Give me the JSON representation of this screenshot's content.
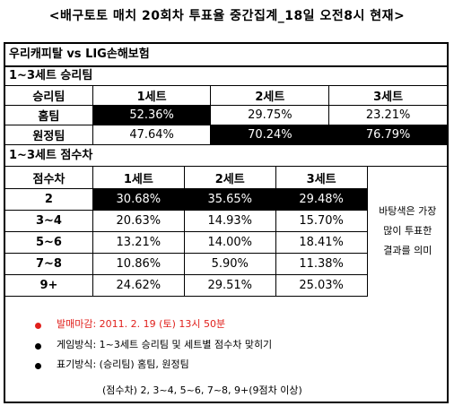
{
  "title": "<배구토토 매치 20회차 투표율 중간집계_18일 오전8시 현재>",
  "match": "우리캐피탈 vs LIG손해보험",
  "section1": {
    "label": "1~3세트 승리팀",
    "headers": [
      "승리팀",
      "1세트",
      "2세트",
      "3세트"
    ],
    "rows": [
      {
        "label": "홈팀",
        "values": [
          "52.36%",
          "29.75%",
          "23.21%"
        ]
      },
      {
        "label": "원정팀",
        "values": [
          "47.64%",
          "70.24%",
          "76.79%"
        ]
      }
    ]
  },
  "section2": {
    "label": "1~3세트 점수차",
    "headers": [
      "점수차",
      "1세트",
      "2세트",
      "3세트"
    ],
    "rows": [
      {
        "label": "2",
        "values": [
          "30.68%",
          "35.65%",
          "29.48%"
        ]
      },
      {
        "label": "3~4",
        "values": [
          "20.63%",
          "14.93%",
          "15.70%"
        ]
      },
      {
        "label": "5~6",
        "values": [
          "13.21%",
          "14.00%",
          "18.41%"
        ]
      },
      {
        "label": "7~8",
        "values": [
          "10.86%",
          "5.90%",
          "11.38%"
        ]
      },
      {
        "label": "9+",
        "values": [
          "24.62%",
          "29.51%",
          "25.03%"
        ]
      }
    ],
    "side_note": [
      "바탕색은 가장",
      "많이 투표한",
      "결과를 의미"
    ]
  },
  "notes": [
    {
      "text": "발매마감: 2011. 2. 19 (토) 13시 50분",
      "color": "#e0201c"
    },
    {
      "text": "게임방식: 1~3세트 승리팀 및 세트별 점수차 맞히기",
      "color": "#000000"
    },
    {
      "text": "표기방식: (승리팀) 홈팀, 원정팀",
      "color": "#000000"
    }
  ],
  "notes_extra": "(점수차) 2, 3~4, 5~6, 7~8, 9+(9점차 이상)"
}
